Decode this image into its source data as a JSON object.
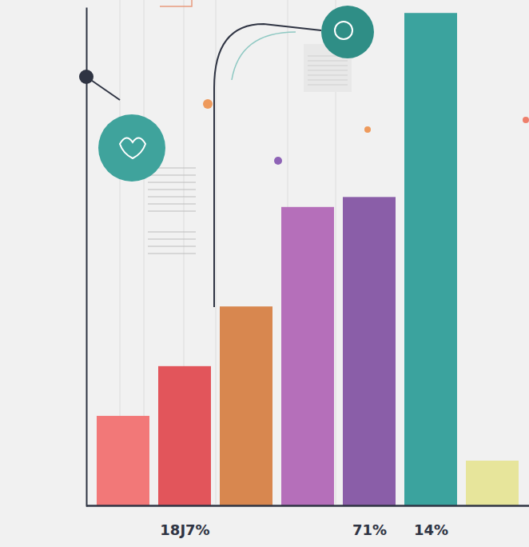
{
  "chart_data": {
    "type": "bar",
    "categories": [
      null,
      "18J7%",
      null,
      null,
      "71%",
      "14%",
      null
    ],
    "values": [
      18,
      28,
      40,
      60,
      62,
      99,
      9
    ],
    "colors": [
      "#f27878",
      "#e2555b",
      "#d8874f",
      "#b56fba",
      "#8a5ea8",
      "#3ba39e",
      "#e7e59b"
    ],
    "ylim": [
      0,
      100
    ],
    "tick_labels": "x"
  }
}
